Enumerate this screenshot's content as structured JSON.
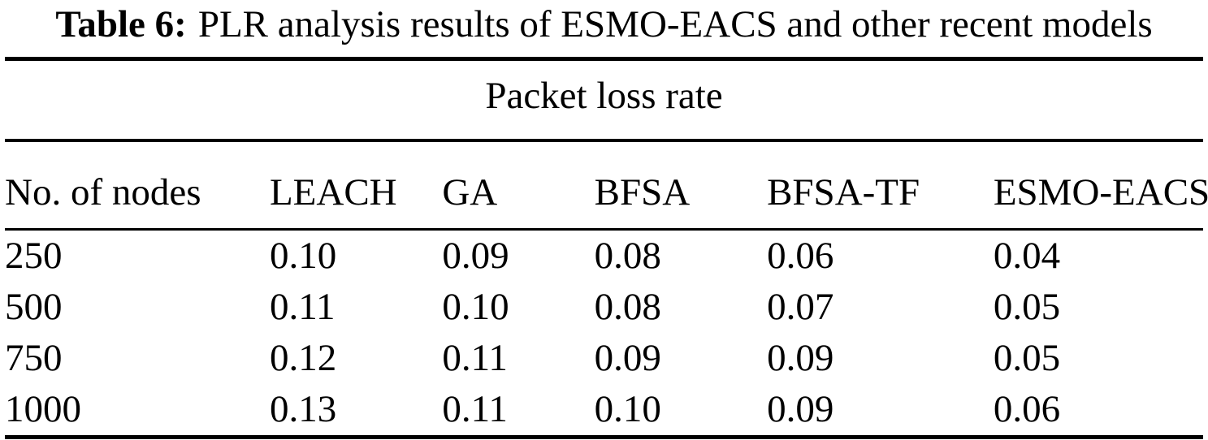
{
  "caption": {
    "label": "Table 6:",
    "text": "PLR analysis results of ESMO-EACS and other recent models"
  },
  "table": {
    "span_header": "Packet loss rate",
    "columns": [
      "No. of nodes",
      "LEACH",
      "GA",
      "BFSA",
      "BFSA-TF",
      "ESMO-EACS"
    ],
    "rows": [
      [
        "250",
        "0.10",
        "0.09",
        "0.08",
        "0.06",
        "0.04"
      ],
      [
        "500",
        "0.11",
        "0.10",
        "0.08",
        "0.07",
        "0.05"
      ],
      [
        "750",
        "0.12",
        "0.11",
        "0.09",
        "0.09",
        "0.05"
      ],
      [
        "1000",
        "0.13",
        "0.11",
        "0.10",
        "0.09",
        "0.06"
      ]
    ]
  },
  "colors": {
    "text": "#000000",
    "background": "#ffffff",
    "rule": "#000000"
  }
}
